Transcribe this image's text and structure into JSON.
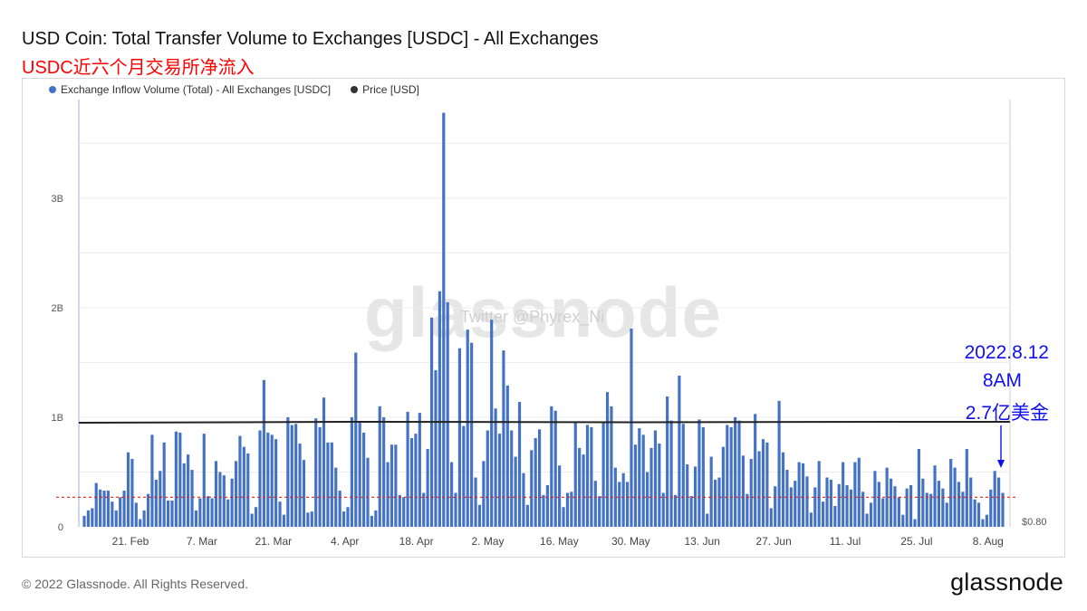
{
  "title": "USD Coin: Total Transfer Volume to Exchanges [USDC] - All Exchanges",
  "subtitle": "USDC近六个月交易所净流入",
  "legend": [
    {
      "label": "Exchange Inflow Volume (Total) - All Exchanges [USDC]",
      "color": "#4472c4"
    },
    {
      "label": "Price [USD]",
      "color": "#333333"
    }
  ],
  "watermark": {
    "logo": "glassnode",
    "twitter": "Twitter @Phyrex_Ni"
  },
  "annotation": {
    "date": "2022.8.12",
    "time": "8AM",
    "amount": "2.7亿美金"
  },
  "footer": {
    "copyright": "© 2022 Glassnode. All Rights Reserved.",
    "logo": "glassnode"
  },
  "colors": {
    "bar": "#4472c4",
    "price_line": "#222222",
    "ref_line": "#e02020",
    "annotation": "#1010ee"
  },
  "chart_data": {
    "type": "bar",
    "x_tick_labels": [
      "21. Feb",
      "7. Mar",
      "21. Mar",
      "4. Apr",
      "18. Apr",
      "2. May",
      "16. May",
      "30. May",
      "13. Jun",
      "27. Jun",
      "11. Jul",
      "25. Jul",
      "8. Aug"
    ],
    "y_tick_labels": [
      "0",
      "1B",
      "2B",
      "3B"
    ],
    "y_right_label": "$0.80",
    "ylim": [
      0,
      3900000000
    ],
    "series": [
      {
        "name": "Exchange Inflow Volume (Total) - All Exchanges [USDC]",
        "unit": "USDC",
        "values": [
          0.1,
          0.15,
          0.17,
          0.4,
          0.34,
          0.33,
          0.33,
          0.23,
          0.15,
          0.27,
          0.33,
          0.68,
          0.62,
          0.22,
          0.07,
          0.15,
          0.3,
          0.84,
          0.43,
          0.51,
          0.77,
          0.24,
          0.24,
          0.87,
          0.86,
          0.58,
          0.66,
          0.52,
          0.15,
          0.26,
          0.85,
          0.28,
          0.26,
          0.6,
          0.5,
          0.47,
          0.25,
          0.44,
          0.6,
          0.83,
          0.73,
          0.67,
          0.12,
          0.18,
          0.88,
          1.34,
          0.86,
          0.84,
          0.8,
          0.23,
          0.11,
          1.0,
          0.93,
          0.94,
          0.76,
          0.61,
          0.13,
          0.14,
          0.99,
          0.91,
          1.18,
          0.77,
          0.77,
          0.54,
          0.33,
          0.14,
          0.18,
          1.0,
          1.59,
          0.95,
          0.86,
          0.63,
          0.1,
          0.15,
          1.1,
          1.0,
          0.59,
          0.75,
          0.75,
          0.29,
          0.27,
          1.05,
          0.81,
          0.85,
          1.04,
          0.31,
          0.71,
          1.91,
          1.43,
          2.15,
          3.78,
          2.05,
          0.59,
          0.31,
          1.63,
          0.92,
          1.8,
          1.68,
          0.45,
          0.2,
          0.6,
          0.88,
          1.89,
          1.08,
          0.85,
          1.61,
          1.29,
          0.88,
          0.64,
          1.14,
          0.49,
          0.2,
          0.7,
          0.81,
          0.89,
          0.29,
          0.38,
          1.1,
          1.06,
          0.56,
          0.18,
          0.31,
          0.32,
          0.95,
          0.72,
          0.66,
          0.93,
          0.91,
          0.42,
          0.28,
          0.96,
          1.23,
          1.1,
          0.54,
          0.41,
          0.49,
          0.41,
          1.81,
          0.75,
          0.9,
          0.84,
          0.5,
          0.72,
          0.88,
          0.76,
          0.31,
          1.19,
          0.97,
          0.29,
          1.38,
          0.94,
          0.57,
          0.28,
          0.55,
          0.98,
          0.91,
          0.12,
          0.64,
          0.43,
          0.45,
          0.73,
          0.93,
          0.91,
          1.0,
          0.97,
          0.65,
          0.3,
          0.62,
          1.03,
          0.69,
          0.8,
          0.77,
          0.17,
          0.37,
          1.15,
          0.68,
          0.52,
          0.36,
          0.42,
          0.59,
          0.58,
          0.46,
          0.13,
          0.36,
          0.6,
          0.23,
          0.45,
          0.43,
          0.19,
          0.39,
          0.59,
          0.38,
          0.34,
          0.59,
          0.63,
          0.32,
          0.12,
          0.22,
          0.51,
          0.41,
          0.26,
          0.54,
          0.44,
          0.37,
          0.27,
          0.11,
          0.35,
          0.38,
          0.07,
          0.71,
          0.44,
          0.31,
          0.3,
          0.56,
          0.42,
          0.35,
          0.22,
          0.62,
          0.54,
          0.41,
          0.32,
          0.71,
          0.45,
          0.25,
          0.22,
          0.07,
          0.11,
          0.34,
          0.51,
          0.45,
          0.31
        ],
        "values_scale": 1000000000
      },
      {
        "name": "Price [USD]",
        "unit": "USD",
        "values_flat_level": 1.0
      }
    ],
    "reference_line_value": 270000000,
    "grid": true,
    "legend_position": "top-left"
  }
}
